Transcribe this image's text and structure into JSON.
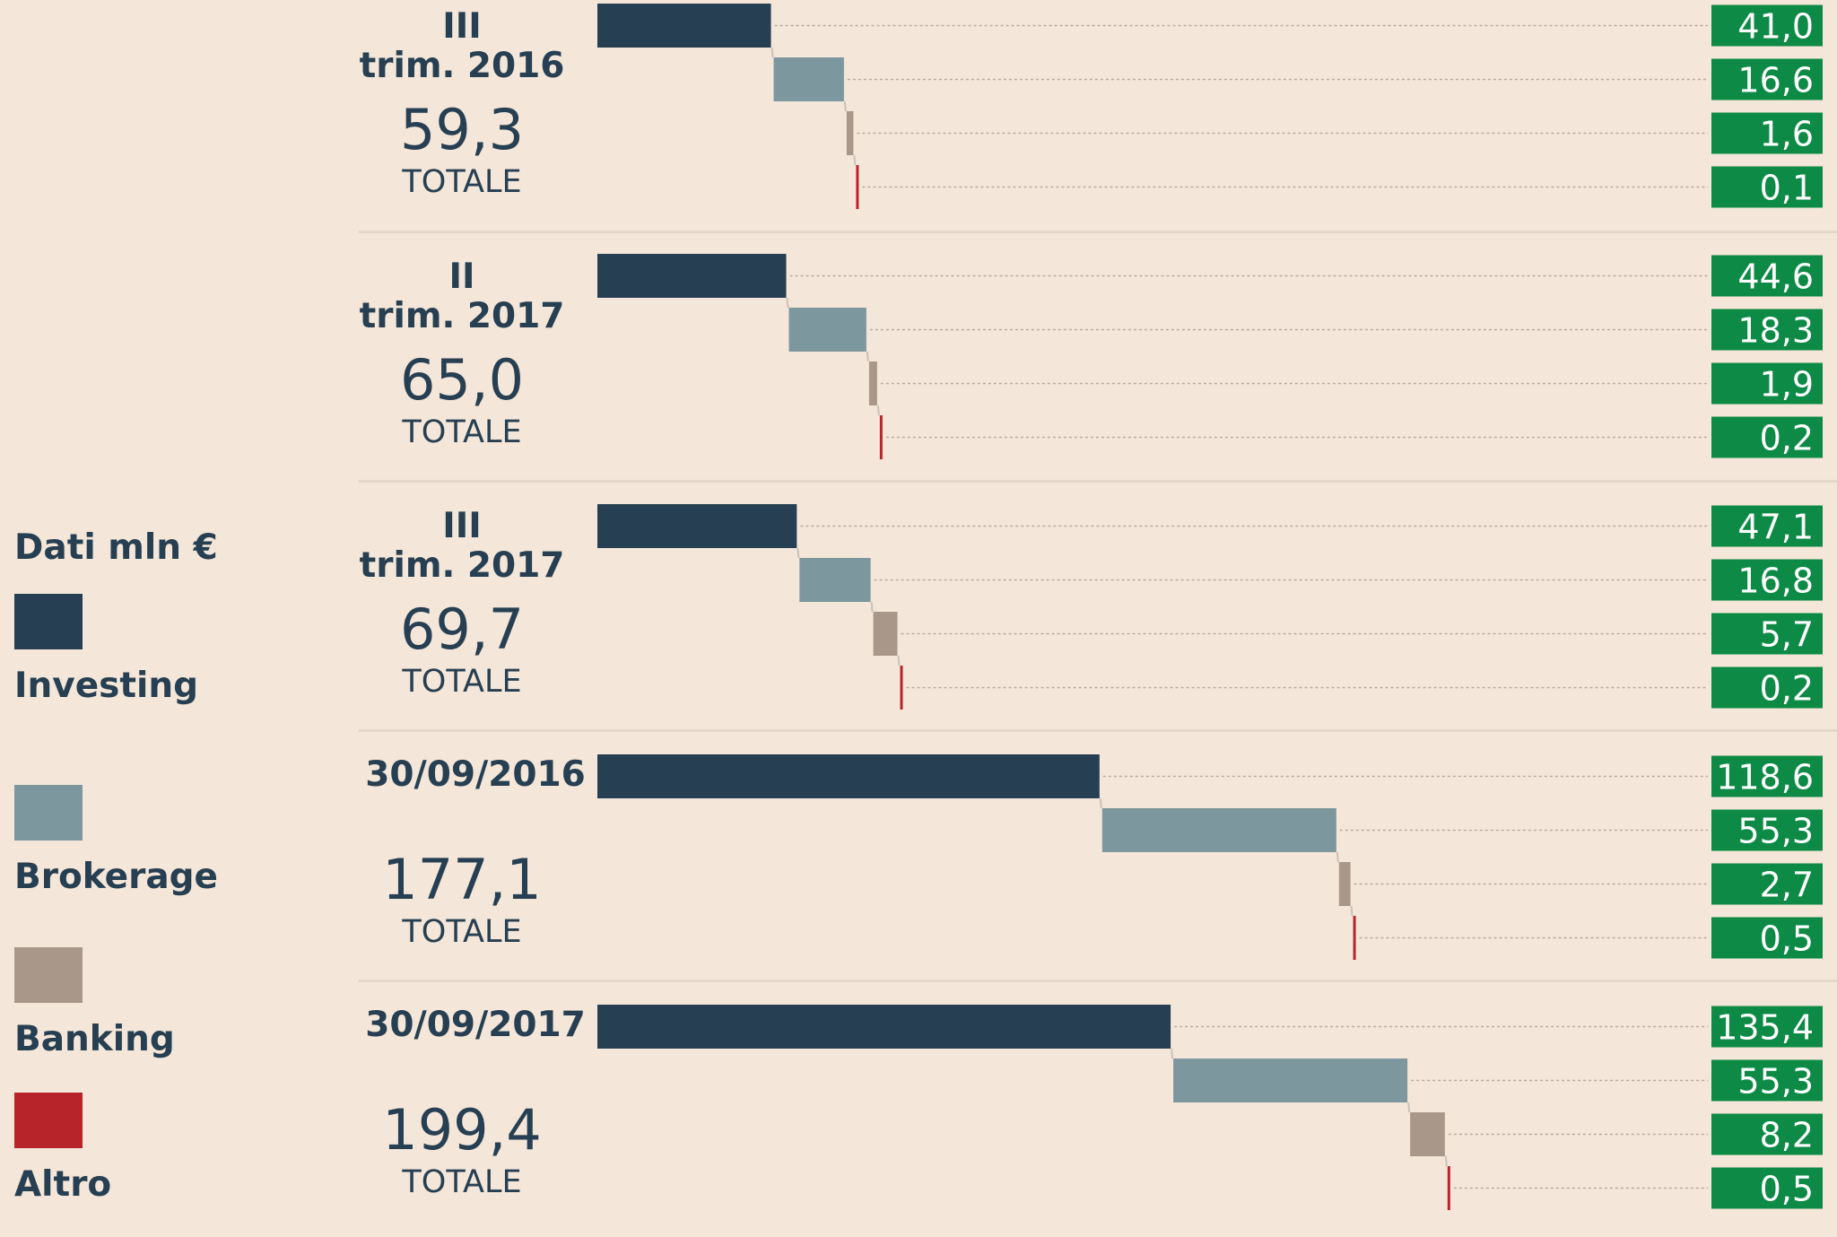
{
  "chart_data": {
    "type": "bar",
    "unit_label": "Dati mln €",
    "total_label": "TOTALE",
    "series": [
      {
        "name": "Investing",
        "color": "#263f52"
      },
      {
        "name": "Brokerage",
        "color": "#7d979e"
      },
      {
        "name": "Banking",
        "color": "#a99889"
      },
      {
        "name": "Altro",
        "color": "#b7252b"
      }
    ],
    "value_badge_color": "#0d8a45",
    "groups": [
      {
        "label_lines": [
          "III",
          "trim. 2016"
        ],
        "total": "59,3",
        "values": [
          41.0,
          16.6,
          1.6,
          0.1
        ],
        "value_labels": [
          "41,0",
          "16,6",
          "1,6",
          "0,1"
        ]
      },
      {
        "label_lines": [
          "II",
          "trim. 2017"
        ],
        "total": "65,0",
        "values": [
          44.6,
          18.3,
          1.9,
          0.2
        ],
        "value_labels": [
          "44,6",
          "18,3",
          "1,9",
          "0,2"
        ]
      },
      {
        "label_lines": [
          "III",
          "trim. 2017"
        ],
        "total": "69,7",
        "values": [
          47.1,
          16.8,
          5.7,
          0.2
        ],
        "value_labels": [
          "47,1",
          "16,8",
          "5,7",
          "0,2"
        ]
      },
      {
        "label_lines": [
          "30/09/2016"
        ],
        "total": "177,1",
        "values": [
          118.6,
          55.3,
          2.7,
          0.5
        ],
        "value_labels": [
          "118,6",
          "55,3",
          "2,7",
          "0,5"
        ]
      },
      {
        "label_lines": [
          "30/09/2017"
        ],
        "total": "199,4",
        "values": [
          135.4,
          55.3,
          8.2,
          0.5
        ],
        "value_labels": [
          "135,4",
          "55,3",
          "8,2",
          "0,5"
        ]
      }
    ]
  }
}
